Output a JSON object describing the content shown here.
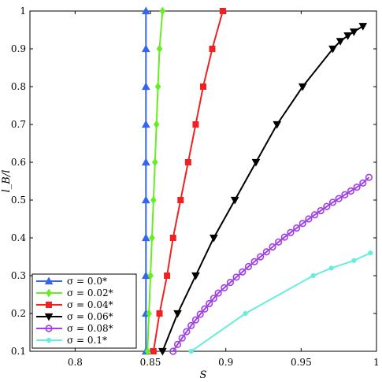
{
  "chart_data": {
    "type": "line",
    "title": "",
    "xlabel": "S",
    "ylabel": "l_B/l",
    "xlim": [
      0.77,
      1.0
    ],
    "ylim": [
      0.1,
      1.0
    ],
    "x_ticks": [
      0.8,
      0.85,
      0.9,
      0.95,
      1.0
    ],
    "x_tick_labels": [
      "0.8",
      "0.85",
      "0.9",
      "0.95",
      "1"
    ],
    "y_ticks": [
      0.1,
      0.2,
      0.3,
      0.4,
      0.5,
      0.6,
      0.7,
      0.8,
      0.9,
      1.0
    ],
    "y_tick_labels": [
      "0.1",
      "0.2",
      "0.3",
      "0.4",
      "0.5",
      "0.6",
      "0.7",
      "0.8",
      "0.9",
      "1"
    ],
    "grid": false,
    "legend_position": "bottom-left",
    "series": [
      {
        "name": "σ = 0.0*",
        "color": "#3366ee",
        "marker": "triangle-up",
        "x": [
          0.847,
          0.847,
          0.847,
          0.847,
          0.847,
          0.847,
          0.847,
          0.847,
          0.847,
          0.847
        ],
        "y": [
          0.1,
          0.2,
          0.3,
          0.4,
          0.5,
          0.6,
          0.7,
          0.8,
          0.9,
          1.0
        ]
      },
      {
        "name": "σ = 0.02*",
        "color": "#66ee22",
        "marker": "diamond",
        "x": [
          0.848,
          0.849,
          0.85,
          0.851,
          0.852,
          0.853,
          0.854,
          0.855,
          0.856,
          0.858
        ],
        "y": [
          0.1,
          0.2,
          0.3,
          0.4,
          0.5,
          0.6,
          0.7,
          0.8,
          0.9,
          1.0
        ]
      },
      {
        "name": "σ = 0.04*",
        "color": "#ee2222",
        "marker": "square",
        "x": [
          0.852,
          0.856,
          0.861,
          0.865,
          0.87,
          0.875,
          0.88,
          0.885,
          0.891,
          0.898
        ],
        "y": [
          0.1,
          0.2,
          0.3,
          0.4,
          0.5,
          0.6,
          0.7,
          0.8,
          0.9,
          1.0
        ]
      },
      {
        "name": "σ = 0.06*",
        "color": "#000000",
        "marker": "triangle-down",
        "x": [
          0.858,
          0.868,
          0.88,
          0.892,
          0.906,
          0.92,
          0.934,
          0.951,
          0.971,
          0.976,
          0.981,
          0.985,
          0.991
        ],
        "y": [
          0.1,
          0.2,
          0.3,
          0.4,
          0.5,
          0.6,
          0.7,
          0.8,
          0.9,
          0.92,
          0.935,
          0.945,
          0.96
        ]
      },
      {
        "name": "σ = 0.08*",
        "color": "#a040e8",
        "marker": "circle",
        "x": [
          0.865,
          0.868,
          0.871,
          0.874,
          0.877,
          0.88,
          0.883,
          0.886,
          0.889,
          0.892,
          0.895,
          0.899,
          0.903,
          0.907,
          0.911,
          0.915,
          0.919,
          0.923,
          0.927,
          0.931,
          0.935,
          0.939,
          0.943,
          0.947,
          0.951,
          0.955,
          0.959,
          0.963,
          0.967,
          0.971,
          0.975,
          0.979,
          0.983,
          0.987,
          0.991,
          0.995
        ],
        "y": [
          0.1,
          0.118,
          0.135,
          0.152,
          0.168,
          0.183,
          0.198,
          0.212,
          0.226,
          0.24,
          0.254,
          0.268,
          0.282,
          0.296,
          0.31,
          0.324,
          0.337,
          0.35,
          0.363,
          0.376,
          0.389,
          0.402,
          0.414,
          0.426,
          0.438,
          0.45,
          0.461,
          0.472,
          0.483,
          0.494,
          0.504,
          0.514,
          0.524,
          0.534,
          0.545,
          0.56
        ]
      },
      {
        "name": "σ = 0.1*",
        "color": "#66eedd",
        "marker": "dot",
        "x": [
          0.877,
          0.913,
          0.958,
          0.97,
          0.985,
          0.996
        ],
        "y": [
          0.1,
          0.2,
          0.3,
          0.32,
          0.34,
          0.36
        ]
      }
    ]
  }
}
